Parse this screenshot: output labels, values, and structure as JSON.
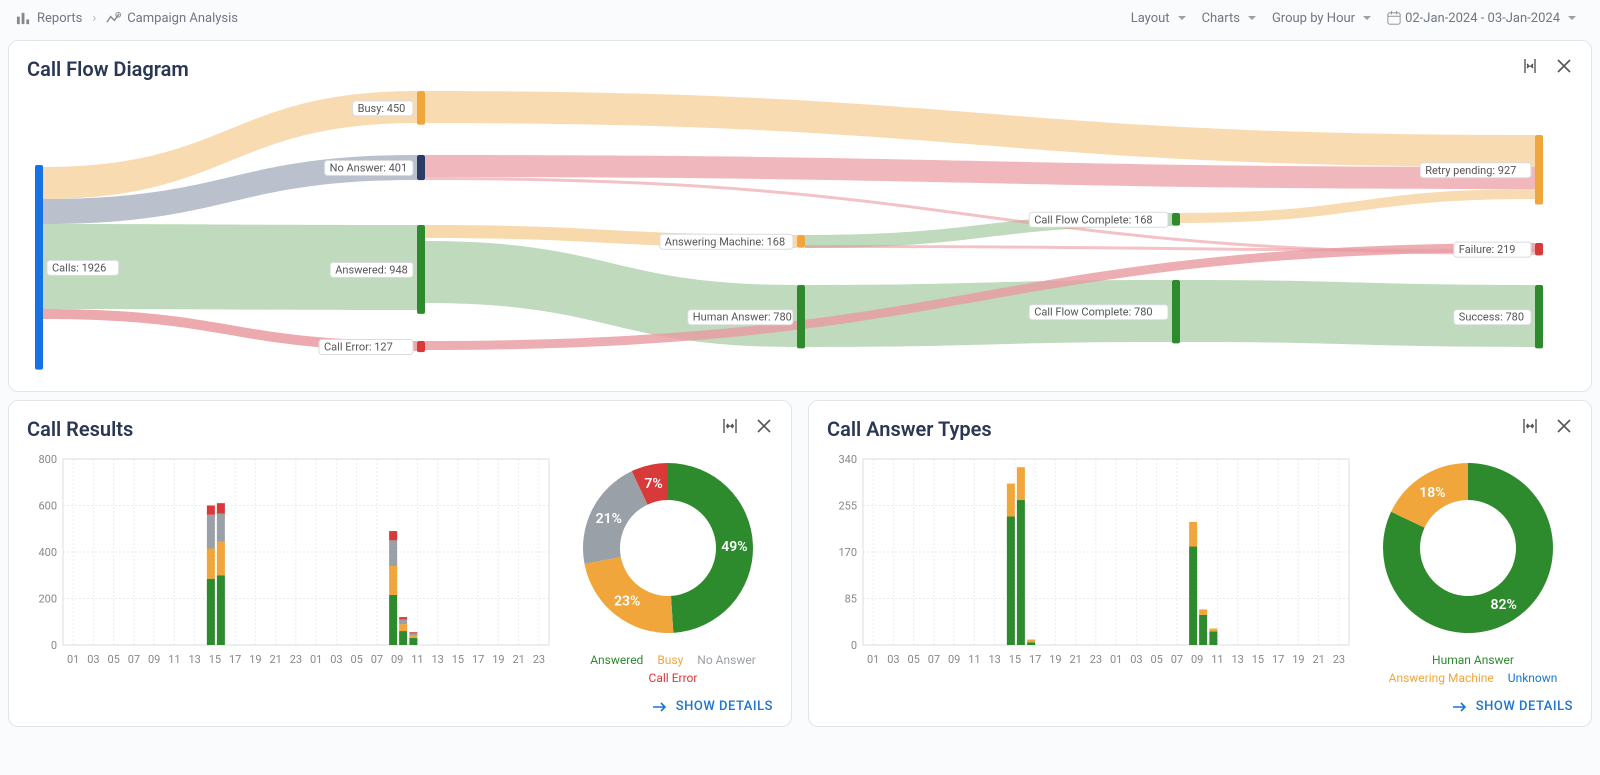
{
  "breadcrumb": {
    "root": "Reports",
    "page": "Campaign Analysis"
  },
  "toolbar": {
    "layout": "Layout",
    "charts": "Charts",
    "groupby": "Group by Hour",
    "daterange": "02-Jan-2024 - 03-Jan-2024"
  },
  "colors": {
    "green": "#2d8a2d",
    "orange": "#f0a63a",
    "grey": "#9aa0a7",
    "red": "#d83a3a",
    "blue": "#1976d2",
    "darkblue": "#2a3b66",
    "pink": "#e99aa0",
    "ltgreen": "#b4d3b0",
    "ltorange": "#f7d29d"
  },
  "sankey": {
    "title": "Call Flow Diagram",
    "nodes": [
      {
        "id": "calls",
        "label": "Calls: 1926",
        "color": "#1673e6"
      },
      {
        "id": "busy",
        "label": "Busy: 450",
        "color": "#f0a63a"
      },
      {
        "id": "noanswer",
        "label": "No Answer: 401",
        "color": "#2a3b66"
      },
      {
        "id": "answered",
        "label": "Answered: 948",
        "color": "#2d8a2d"
      },
      {
        "id": "callerror",
        "label": "Call Error: 127",
        "color": "#d83a3a"
      },
      {
        "id": "am",
        "label": "Answering Machine: 168",
        "color": "#f0a63a"
      },
      {
        "id": "ha",
        "label": "Human Answer: 780",
        "color": "#2d8a2d"
      },
      {
        "id": "cfc168",
        "label": "Call Flow Complete: 168",
        "color": "#2d8a2d"
      },
      {
        "id": "cfc780",
        "label": "Call Flow Complete: 780",
        "color": "#2d8a2d"
      },
      {
        "id": "retry",
        "label": "Retry pending: 927",
        "color": "#f0a63a"
      },
      {
        "id": "failure",
        "label": "Failure: 219",
        "color": "#d83a3a"
      },
      {
        "id": "success",
        "label": "Success: 780",
        "color": "#2d8a2d"
      }
    ]
  },
  "callResults": {
    "title": "Call Results",
    "ylim": [
      0,
      800
    ],
    "ytick": 200,
    "hours": [
      "01",
      "03",
      "05",
      "07",
      "09",
      "11",
      "13",
      "15",
      "17",
      "19",
      "21",
      "23",
      "01",
      "03",
      "05",
      "07",
      "09",
      "11",
      "13",
      "15",
      "17",
      "19",
      "21",
      "23"
    ],
    "bars": [
      {
        "h": "15",
        "day": 0,
        "answered": 285,
        "busy": 130,
        "noanswer": 145,
        "callerror": 40
      },
      {
        "h": "16",
        "day": 0,
        "answered": 300,
        "busy": 145,
        "noanswer": 120,
        "callerror": 45
      },
      {
        "h": "09",
        "day": 1,
        "answered": 215,
        "busy": 125,
        "noanswer": 110,
        "callerror": 40
      },
      {
        "h": "10",
        "day": 1,
        "answered": 60,
        "busy": 30,
        "noanswer": 20,
        "callerror": 10
      },
      {
        "h": "11",
        "day": 1,
        "answered": 30,
        "busy": 10,
        "noanswer": 10,
        "callerror": 5
      }
    ],
    "donut": [
      {
        "label": "Answered",
        "value": 49,
        "color": "#2d8a2d"
      },
      {
        "label": "Busy",
        "value": 23,
        "color": "#f0a63a"
      },
      {
        "label": "No Answer",
        "value": 21,
        "color": "#9aa0a7"
      },
      {
        "label": "Call Error",
        "value": 7,
        "color": "#d83a3a"
      }
    ],
    "details": "SHOW DETAILS"
  },
  "answerTypes": {
    "title": "Call Answer Types",
    "ylim": [
      0,
      340
    ],
    "ytick": 85,
    "hours": [
      "01",
      "03",
      "05",
      "07",
      "09",
      "11",
      "13",
      "15",
      "17",
      "19",
      "21",
      "23",
      "01",
      "03",
      "05",
      "07",
      "09",
      "11",
      "13",
      "15",
      "17",
      "19",
      "21",
      "23"
    ],
    "bars": [
      {
        "h": "15",
        "day": 0,
        "human": 235,
        "am": 60
      },
      {
        "h": "16",
        "day": 0,
        "human": 265,
        "am": 60
      },
      {
        "h": "17",
        "day": 0,
        "human": 5,
        "am": 5
      },
      {
        "h": "09",
        "day": 1,
        "human": 180,
        "am": 45
      },
      {
        "h": "10",
        "day": 1,
        "human": 55,
        "am": 10
      },
      {
        "h": "11",
        "day": 1,
        "human": 25,
        "am": 5
      }
    ],
    "donut": [
      {
        "label": "Human Answer",
        "value": 82,
        "color": "#2d8a2d"
      },
      {
        "label": "Answering Machine",
        "value": 18,
        "color": "#f0a63a"
      },
      {
        "label": "Unknown",
        "value": 0,
        "color": "#1976d2"
      }
    ],
    "details": "SHOW DETAILS"
  }
}
